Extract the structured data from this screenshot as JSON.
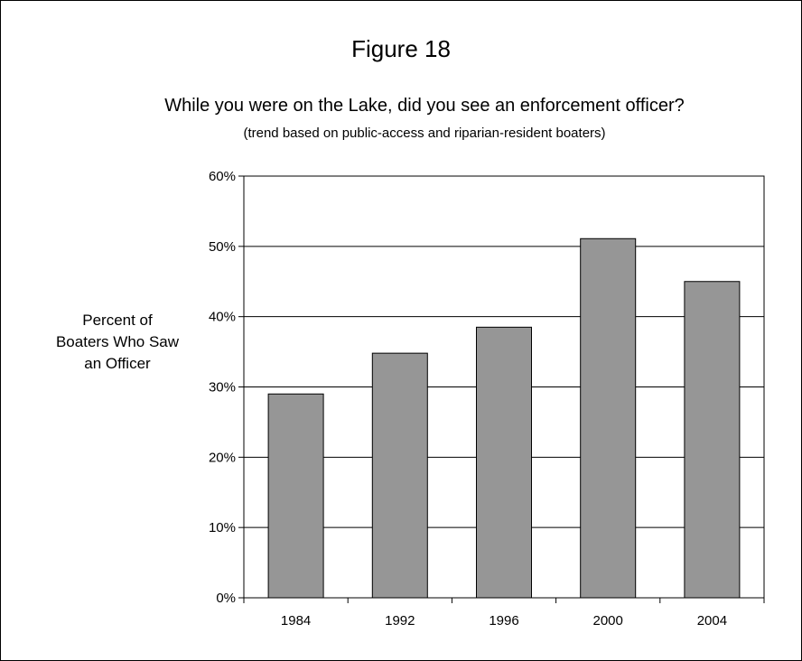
{
  "figure_label": "Figure 18",
  "chart_data": {
    "type": "bar",
    "title": "While you were on the Lake, did you see an enforcement officer?",
    "subtitle": "(trend based on public-access and riparian-resident boaters)",
    "ylabel": "Percent of Boaters Who Saw an Officer",
    "ylabel_lines": [
      "Percent of",
      "Boaters Who Saw",
      "an Officer"
    ],
    "xlabel": "",
    "categories": [
      "1984",
      "1992",
      "1996",
      "2000",
      "2004"
    ],
    "values": [
      29,
      34.8,
      38.5,
      51.1,
      45
    ],
    "ylim": [
      0,
      60
    ],
    "yticks": [
      0,
      10,
      20,
      30,
      40,
      50,
      60
    ],
    "ytick_labels": [
      "0%",
      "10%",
      "20%",
      "30%",
      "40%",
      "50%",
      "60%"
    ],
    "grid": true,
    "bar_color": "#969696"
  }
}
